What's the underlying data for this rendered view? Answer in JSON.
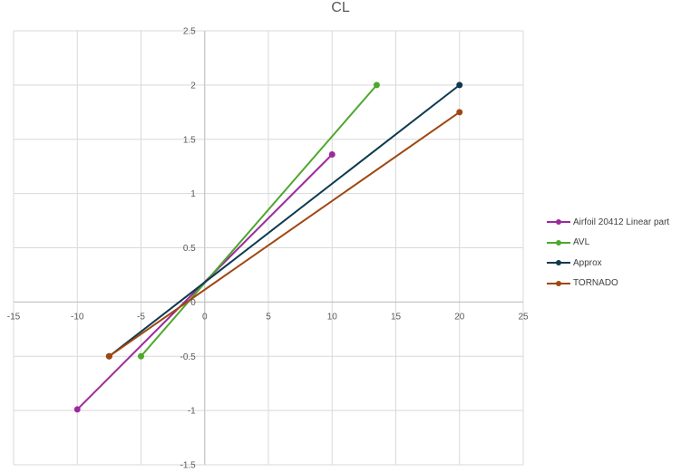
{
  "chart_data": {
    "type": "scatter",
    "title": "CL",
    "xlabel": "",
    "ylabel": "",
    "xlim": [
      -15,
      25
    ],
    "ylim": [
      -1.5,
      2.5
    ],
    "xticks": [
      "-15",
      "-10",
      "-5",
      "0",
      "5",
      "10",
      "15",
      "20",
      "25"
    ],
    "yticks": [
      "2.5",
      "2",
      "1.5",
      "1",
      "0.5",
      "0",
      "-0.5",
      "-1",
      "-1.5"
    ],
    "grid": true,
    "legend_position": "right",
    "series": [
      {
        "name": "Airfoil 20412 Linear part",
        "color": "#9C2A9C",
        "points": [
          [
            -10,
            -0.99
          ],
          [
            10,
            1.36
          ]
        ]
      },
      {
        "name": "AVL",
        "color": "#4EA72E",
        "points": [
          [
            -5,
            -0.5
          ],
          [
            13.5,
            2.0
          ]
        ]
      },
      {
        "name": "Approx",
        "color": "#0E3A4F",
        "points": [
          [
            -7.5,
            -0.5
          ],
          [
            20,
            2.0
          ]
        ]
      },
      {
        "name": "TORNADO",
        "color": "#A04711",
        "points": [
          [
            -7.5,
            -0.5
          ],
          [
            20,
            1.75
          ]
        ]
      }
    ]
  }
}
